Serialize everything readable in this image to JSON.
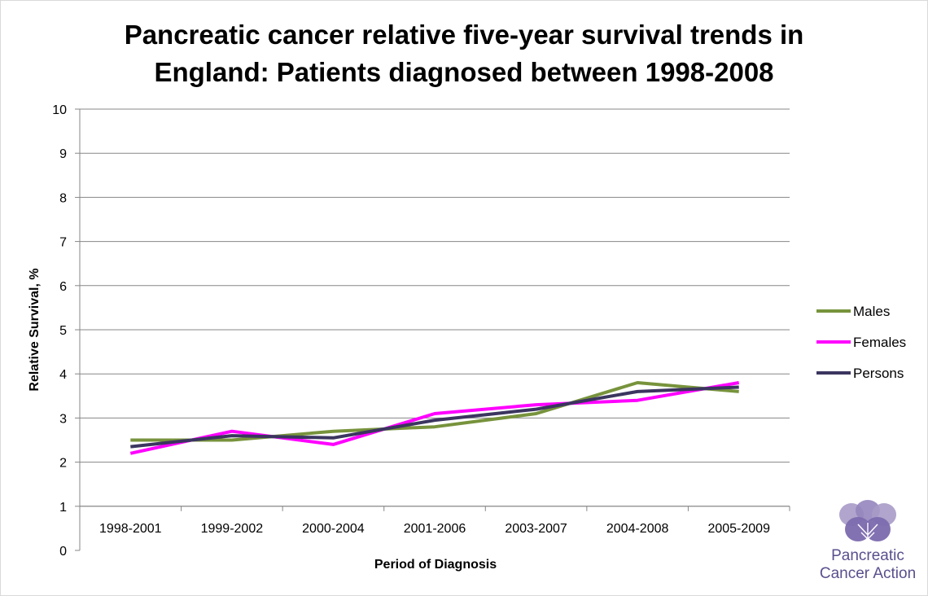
{
  "chart_data": {
    "type": "line",
    "title_line1": "Pancreatic cancer relative five-year survival trends in",
    "title_line2": "England: Patients diagnosed between 1998-2008",
    "xlabel": "Period of Diagnosis",
    "ylabel": "Relative Survival, %",
    "ylim": [
      0,
      10
    ],
    "yticks": [
      "0",
      "1",
      "2",
      "3",
      "4",
      "5",
      "6",
      "7",
      "8",
      "9",
      "10"
    ],
    "grid": true,
    "legend_position": "right",
    "categories": [
      "1998-2001",
      "1999-2002",
      "2000-2004",
      "2001-2006",
      "2003-2007",
      "2004-2008",
      "2005-2009"
    ],
    "series": [
      {
        "name": "Males",
        "color": "#77933c",
        "values": [
          2.5,
          2.5,
          2.7,
          2.8,
          3.1,
          3.8,
          3.6
        ]
      },
      {
        "name": "Females",
        "color": "#ff00ff",
        "values": [
          2.2,
          2.7,
          2.4,
          3.1,
          3.3,
          3.4,
          3.8
        ]
      },
      {
        "name": "Persons",
        "color": "#3b3560",
        "values": [
          2.35,
          2.6,
          2.55,
          2.95,
          3.2,
          3.6,
          3.7
        ]
      }
    ]
  },
  "logo": {
    "line1": "Pancreatic",
    "line2": "Cancer Action",
    "color": "#5a4f8e"
  }
}
